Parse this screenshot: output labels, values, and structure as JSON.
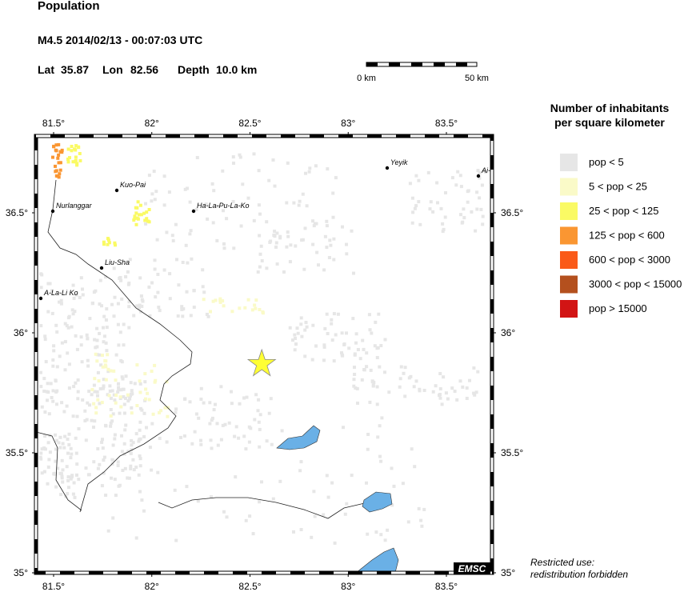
{
  "header": {
    "title": "Population",
    "event": "M4.5  2014/02/13 - 00:07:03 UTC",
    "lat_label": "Lat",
    "lat": 35.87,
    "lon_label": "Lon",
    "lon": 82.56,
    "depth_label": "Depth",
    "depth": "10.0 km"
  },
  "scale_bar": {
    "start": "0 km",
    "end": "50 km"
  },
  "map": {
    "lon_ticks": [
      {
        "value": 81.5,
        "label": "81.5°"
      },
      {
        "value": 82,
        "label": "82°"
      },
      {
        "value": 82.5,
        "label": "82.5°"
      },
      {
        "value": 83,
        "label": "83°"
      },
      {
        "value": 83.5,
        "label": "83.5°"
      }
    ],
    "lat_ticks": [
      {
        "value": 35,
        "label": "35°"
      },
      {
        "value": 35.5,
        "label": "35.5°"
      },
      {
        "value": 36,
        "label": "36°"
      },
      {
        "value": 36.5,
        "label": "36.5°"
      }
    ],
    "places": [
      "Nurlanggar",
      "Kuo-Pai",
      "Ha-La-Pu-La-Ko",
      "Liu-Sha",
      "A-La-Li Ko",
      "Yeyik",
      "Ai-"
    ],
    "logo": "EMSC"
  },
  "legend": {
    "title": [
      "Number of inhabitants",
      "per square kilometer"
    ],
    "items": [
      {
        "label": "pop < 5",
        "color": "#e6e6e6"
      },
      {
        "label": "5 < pop < 25",
        "color": "#fafac8"
      },
      {
        "label": "25 < pop < 125",
        "color": "#fafa64"
      },
      {
        "label": "125 < pop < 600",
        "color": "#fa9632"
      },
      {
        "label": "600 < pop < 3000",
        "color": "#fa5a19"
      },
      {
        "label": "3000 < pop < 15000",
        "color": "#b4501e"
      },
      {
        "label": "pop > 15000",
        "color": "#d21414"
      }
    ]
  },
  "footer": [
    "Restricted use:",
    "redistribution forbidden"
  ]
}
